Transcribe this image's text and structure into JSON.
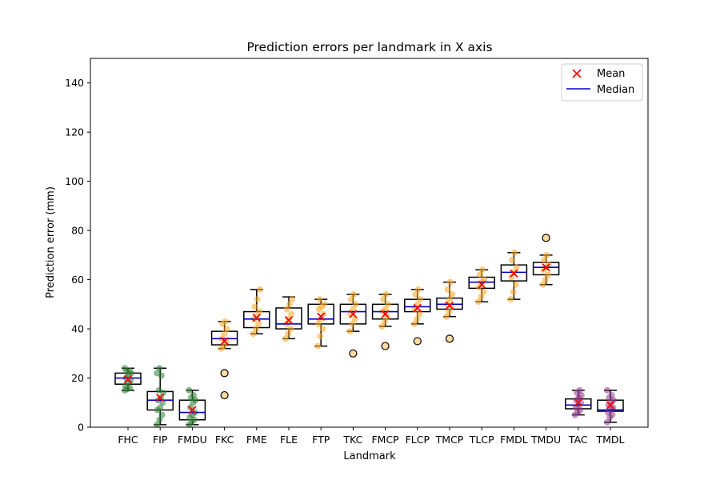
{
  "chart_data": {
    "type": "box",
    "title": "Prediction errors per landmark in X axis",
    "xlabel": "Landmark",
    "ylabel": "Prediction error (mm)",
    "ylim": [
      0,
      150
    ],
    "yticks": [
      0,
      20,
      40,
      60,
      80,
      100,
      120,
      140
    ],
    "grid": false,
    "legend_position": "top-right",
    "legend": [
      {
        "label": "Mean",
        "marker": "x",
        "color": "#ff0000"
      },
      {
        "label": "Median",
        "marker": "line",
        "color": "#0000cc"
      }
    ],
    "colors": {
      "green": "#2e7d32",
      "orange": "#f5a623",
      "purple": "#8e3a8e",
      "mean": "#ff0000",
      "median": "#0000cc",
      "box": "#000000",
      "flier": "#ffd9a0"
    },
    "categories": [
      "FHC",
      "FIP",
      "FMDU",
      "FKC",
      "FME",
      "FLE",
      "FTP",
      "TKC",
      "FMCP",
      "FLCP",
      "TMCP",
      "TLCP",
      "FMDL",
      "TMDU",
      "TAC",
      "TMDL"
    ],
    "boxes": [
      {
        "label": "FHC",
        "color": "green",
        "whisker_low": 15,
        "q1": 17.5,
        "median": 20,
        "q3": 22,
        "whisker_high": 24,
        "mean": 19.5,
        "outliers": [],
        "points": [
          15,
          15.5,
          16,
          17,
          18,
          19,
          20,
          21,
          22,
          22.5,
          23,
          24
        ]
      },
      {
        "label": "FIP",
        "color": "green",
        "whisker_low": 1,
        "q1": 7,
        "median": 11,
        "q3": 14.5,
        "whisker_high": 24,
        "mean": 12,
        "outliers": [],
        "points": [
          1,
          3,
          5,
          7,
          8,
          10,
          11,
          12,
          14,
          15,
          21,
          22,
          24
        ]
      },
      {
        "label": "FMDU",
        "color": "green",
        "whisker_low": 1,
        "q1": 3,
        "median": 6,
        "q3": 11,
        "whisker_high": 15,
        "mean": 7,
        "outliers": [],
        "points": [
          1,
          2,
          3,
          4,
          5,
          6,
          8,
          10,
          11,
          12,
          13,
          15
        ]
      },
      {
        "label": "FKC",
        "color": "orange",
        "whisker_low": 32,
        "q1": 33.5,
        "median": 36,
        "q3": 39,
        "whisker_high": 43,
        "mean": 35,
        "outliers": [
          22,
          13
        ],
        "points": [
          32,
          33,
          35,
          36,
          38,
          40,
          42,
          43
        ]
      },
      {
        "label": "FME",
        "color": "orange",
        "whisker_low": 38,
        "q1": 40.5,
        "median": 44,
        "q3": 47,
        "whisker_high": 56,
        "mean": 44.5,
        "outliers": [],
        "points": [
          38,
          40,
          42,
          44,
          45,
          47,
          49,
          52,
          56
        ]
      },
      {
        "label": "FLE",
        "color": "orange",
        "whisker_low": 36,
        "q1": 40,
        "median": 42,
        "q3": 48.5,
        "whisker_high": 53,
        "mean": 43.5,
        "outliers": [],
        "points": [
          36,
          38,
          40,
          42,
          44,
          46,
          48,
          50,
          52
        ]
      },
      {
        "label": "FTP",
        "color": "orange",
        "whisker_low": 33,
        "q1": 42,
        "median": 44,
        "q3": 50,
        "whisker_high": 52,
        "mean": 45,
        "outliers": [],
        "points": [
          33,
          37,
          40,
          42,
          44,
          46,
          48,
          49,
          50,
          52
        ]
      },
      {
        "label": "TKC",
        "color": "orange",
        "whisker_low": 39,
        "q1": 42,
        "median": 47,
        "q3": 50,
        "whisker_high": 54,
        "mean": 46,
        "outliers": [
          30
        ],
        "points": [
          39,
          42,
          44,
          46,
          48,
          50,
          52,
          54
        ]
      },
      {
        "label": "FMCP",
        "color": "orange",
        "whisker_low": 41,
        "q1": 44,
        "median": 47,
        "q3": 50,
        "whisker_high": 54,
        "mean": 46,
        "outliers": [
          33
        ],
        "points": [
          41,
          43,
          45,
          47,
          48,
          50,
          52,
          54
        ]
      },
      {
        "label": "FLCP",
        "color": "orange",
        "whisker_low": 42,
        "q1": 47,
        "median": 49,
        "q3": 52,
        "whisker_high": 56,
        "mean": 48.5,
        "outliers": [
          35
        ],
        "points": [
          42,
          44,
          46,
          48,
          50,
          52,
          54,
          56
        ]
      },
      {
        "label": "TMCP",
        "color": "orange",
        "whisker_low": 45,
        "q1": 48,
        "median": 50,
        "q3": 52.5,
        "whisker_high": 59,
        "mean": 49.5,
        "outliers": [
          36
        ],
        "points": [
          45,
          47,
          49,
          50,
          52,
          54,
          56,
          59
        ]
      },
      {
        "label": "TLCP",
        "color": "orange",
        "whisker_low": 51,
        "q1": 56.5,
        "median": 59,
        "q3": 61,
        "whisker_high": 64,
        "mean": 58,
        "outliers": [],
        "points": [
          51,
          53,
          55,
          57,
          59,
          60,
          62,
          64
        ]
      },
      {
        "label": "FMDL",
        "color": "orange",
        "whisker_low": 52,
        "q1": 59.5,
        "median": 63,
        "q3": 66,
        "whisker_high": 71,
        "mean": 62.5,
        "outliers": [],
        "points": [
          52,
          55,
          58,
          61,
          63,
          65,
          68,
          71
        ]
      },
      {
        "label": "TMDU",
        "color": "orange",
        "whisker_low": 58,
        "q1": 62,
        "median": 65,
        "q3": 67,
        "whisker_high": 70,
        "mean": 65,
        "outliers": [
          77
        ],
        "points": [
          58,
          60,
          62,
          64,
          65,
          66,
          68,
          70
        ]
      },
      {
        "label": "TAC",
        "color": "purple",
        "whisker_low": 5,
        "q1": 7.5,
        "median": 9,
        "q3": 11.5,
        "whisker_high": 15,
        "mean": 10,
        "outliers": [],
        "points": [
          5,
          6,
          7,
          8,
          9,
          10,
          11,
          12,
          13,
          14,
          15
        ]
      },
      {
        "label": "TMDL",
        "color": "purple",
        "whisker_low": 2,
        "q1": 6.5,
        "median": 7,
        "q3": 11,
        "whisker_high": 15,
        "mean": 9,
        "outliers": [],
        "points": [
          2,
          4,
          5,
          6,
          7,
          8,
          9,
          10,
          11,
          12,
          13,
          15
        ]
      }
    ]
  }
}
